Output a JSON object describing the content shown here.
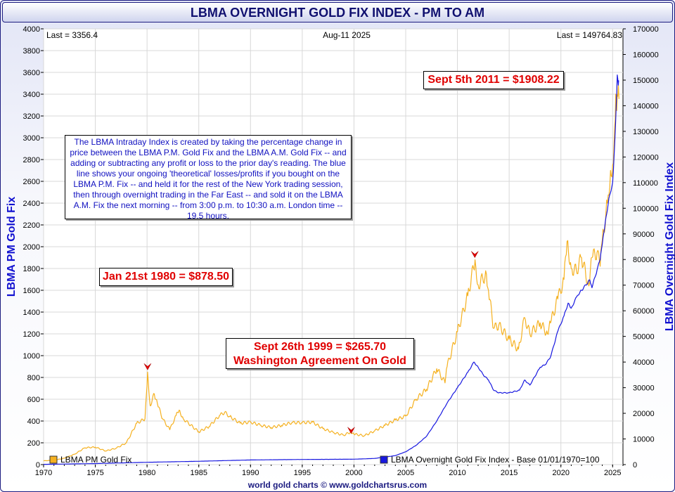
{
  "title": "LBMA OVERNIGHT GOLD FIX INDEX - PM TO AM",
  "header": {
    "last_left": "Last = 3356.4",
    "date": "Aug-11  2025",
    "last_right": "Last = 149764.83"
  },
  "footer": "world gold charts © www.goldchartsrus.com",
  "info_text": "The LBMA Intraday Index is created by taking the percentage change in price between the LBMA P.M. Gold Fix and the LBMA A.M. Gold Fix -- and adding or subtracting any profit or loss to the prior day's reading. The blue line shows your ongoing 'theoretical' losses/profits if you bought on the LBMA P.M. Fix -- and held it for the rest of the New York trading session, then through overnight trading in the Far East -- and sold it on the LBMA A.M. Fix the next morning -- from 3:00 p.m. to 10:30 a.m. London time -- 19.5 hours.",
  "annotations": {
    "sept2011": "Sept 5th 2011 = $1908.22",
    "jan1980": "Jan 21st 1980 = $878.50",
    "sept1999_line1": "Sept 26th 1999 = $265.70",
    "sept1999_line2": "Washington Agreement On Gold"
  },
  "colors": {
    "gold": "#f5b120",
    "index": "#1818e0",
    "title": "#101070",
    "annotation": "#e00000",
    "axis_label": "#1010d0"
  },
  "chart_data": {
    "type": "line",
    "x_range": [
      1970,
      2026
    ],
    "x_ticks": [
      "1970",
      "1975",
      "1980",
      "1985",
      "1990",
      "1995",
      "2000",
      "2005",
      "2010",
      "2015",
      "2020",
      "2025"
    ],
    "y_left": {
      "label": "LBMA PM Gold Fix",
      "range": [
        0,
        4000
      ],
      "ticks": [
        "0",
        "200",
        "400",
        "600",
        "800",
        "1000",
        "1200",
        "1400",
        "1600",
        "1800",
        "2000",
        "2200",
        "2400",
        "2600",
        "2800",
        "3000",
        "3200",
        "3400",
        "3600",
        "3800",
        "4000"
      ]
    },
    "y_right": {
      "label": "LBMA Overnight Gold Fix Index",
      "range": [
        0,
        170000
      ],
      "ticks": [
        "0",
        "10000",
        "20000",
        "30000",
        "40000",
        "50000",
        "60000",
        "70000",
        "80000",
        "90000",
        "100000",
        "110000",
        "120000",
        "130000",
        "140000",
        "150000",
        "160000",
        "170000"
      ]
    },
    "grid": true,
    "series": [
      {
        "name": "LBMA PM Gold Fix",
        "axis": "left",
        "color": "#f5b120",
        "points": [
          [
            1970,
            35
          ],
          [
            1971,
            40
          ],
          [
            1972,
            58
          ],
          [
            1973,
            95
          ],
          [
            1974,
            155
          ],
          [
            1975,
            160
          ],
          [
            1976,
            125
          ],
          [
            1977,
            150
          ],
          [
            1978,
            200
          ],
          [
            1979,
            380
          ],
          [
            1979.8,
            420
          ],
          [
            1980.05,
            850
          ],
          [
            1980.3,
            540
          ],
          [
            1980.7,
            650
          ],
          [
            1981,
            560
          ],
          [
            1981.5,
            420
          ],
          [
            1982.2,
            320
          ],
          [
            1982.8,
            450
          ],
          [
            1983.1,
            500
          ],
          [
            1983.5,
            420
          ],
          [
            1984,
            380
          ],
          [
            1985,
            300
          ],
          [
            1986,
            350
          ],
          [
            1987,
            450
          ],
          [
            1987.5,
            480
          ],
          [
            1988,
            440
          ],
          [
            1989,
            380
          ],
          [
            1990,
            390
          ],
          [
            1991,
            360
          ],
          [
            1992,
            340
          ],
          [
            1993,
            360
          ],
          [
            1994,
            385
          ],
          [
            1995,
            385
          ],
          [
            1996,
            390
          ],
          [
            1997,
            330
          ],
          [
            1998,
            295
          ],
          [
            1999,
            270
          ],
          [
            1999.7,
            300
          ],
          [
            2000,
            280
          ],
          [
            2001,
            265
          ],
          [
            2002,
            310
          ],
          [
            2003,
            360
          ],
          [
            2004,
            410
          ],
          [
            2005,
            445
          ],
          [
            2006,
            600
          ],
          [
            2007,
            690
          ],
          [
            2008,
            880
          ],
          [
            2008.8,
            750
          ],
          [
            2009,
            900
          ],
          [
            2010,
            1220
          ],
          [
            2011,
            1550
          ],
          [
            2011.7,
            1880
          ],
          [
            2012,
            1650
          ],
          [
            2012.8,
            1750
          ],
          [
            2013,
            1600
          ],
          [
            2013.5,
            1250
          ],
          [
            2014,
            1280
          ],
          [
            2015,
            1150
          ],
          [
            2015.9,
            1060
          ],
          [
            2016.5,
            1350
          ],
          [
            2017,
            1200
          ],
          [
            2018,
            1300
          ],
          [
            2018.7,
            1200
          ],
          [
            2019,
            1300
          ],
          [
            2019.7,
            1520
          ],
          [
            2020.3,
            1700
          ],
          [
            2020.6,
            2050
          ],
          [
            2021,
            1800
          ],
          [
            2021.5,
            1780
          ],
          [
            2022,
            1900
          ],
          [
            2022.7,
            1640
          ],
          [
            2023,
            1900
          ],
          [
            2023.5,
            1950
          ],
          [
            2023.8,
            1820
          ],
          [
            2024,
            2060
          ],
          [
            2024.5,
            2400
          ],
          [
            2024.8,
            2700
          ],
          [
            2025,
            2750
          ],
          [
            2025.2,
            3100
          ],
          [
            2025.3,
            3400
          ],
          [
            2025.4,
            3250
          ],
          [
            2025.5,
            3380
          ],
          [
            2025.61,
            3356.4
          ]
        ]
      },
      {
        "name": "LBMA Overnight Gold Fix Index - Base 01/01/1970=100",
        "axis": "right",
        "color": "#1818e0",
        "points": [
          [
            1970,
            100
          ],
          [
            1975,
            400
          ],
          [
            1980,
            900
          ],
          [
            1985,
            1300
          ],
          [
            1990,
            1800
          ],
          [
            1995,
            2000
          ],
          [
            2000,
            2100
          ],
          [
            2002,
            2400
          ],
          [
            2004,
            3500
          ],
          [
            2005,
            5000
          ],
          [
            2006,
            7500
          ],
          [
            2007,
            11000
          ],
          [
            2008,
            17000
          ],
          [
            2009,
            24000
          ],
          [
            2010,
            30000
          ],
          [
            2011,
            36000
          ],
          [
            2011.6,
            40000
          ],
          [
            2012,
            38000
          ],
          [
            2012.5,
            35000
          ],
          [
            2013,
            33000
          ],
          [
            2013.5,
            29000
          ],
          [
            2014,
            28000
          ],
          [
            2015,
            28000
          ],
          [
            2016,
            29000
          ],
          [
            2016.5,
            33000
          ],
          [
            2017,
            31000
          ],
          [
            2018,
            38000
          ],
          [
            2018.5,
            39000
          ],
          [
            2019,
            42000
          ],
          [
            2019.7,
            52000
          ],
          [
            2020.3,
            58000
          ],
          [
            2020.7,
            63000
          ],
          [
            2021,
            61000
          ],
          [
            2021.6,
            66000
          ],
          [
            2022,
            68000
          ],
          [
            2022.8,
            72000
          ],
          [
            2023,
            69000
          ],
          [
            2023.5,
            76000
          ],
          [
            2023.8,
            80000
          ],
          [
            2024,
            86000
          ],
          [
            2024.3,
            95000
          ],
          [
            2024.7,
            105000
          ],
          [
            2025,
            110000
          ],
          [
            2025.2,
            125000
          ],
          [
            2025.35,
            140000
          ],
          [
            2025.45,
            152000
          ],
          [
            2025.55,
            148000
          ],
          [
            2025.61,
            149764.83
          ]
        ]
      }
    ],
    "markers": [
      {
        "x": 1980.05,
        "y": 850
      },
      {
        "x": 1999.73,
        "y": 265.7
      },
      {
        "x": 2011.68,
        "y": 1880
      }
    ]
  }
}
